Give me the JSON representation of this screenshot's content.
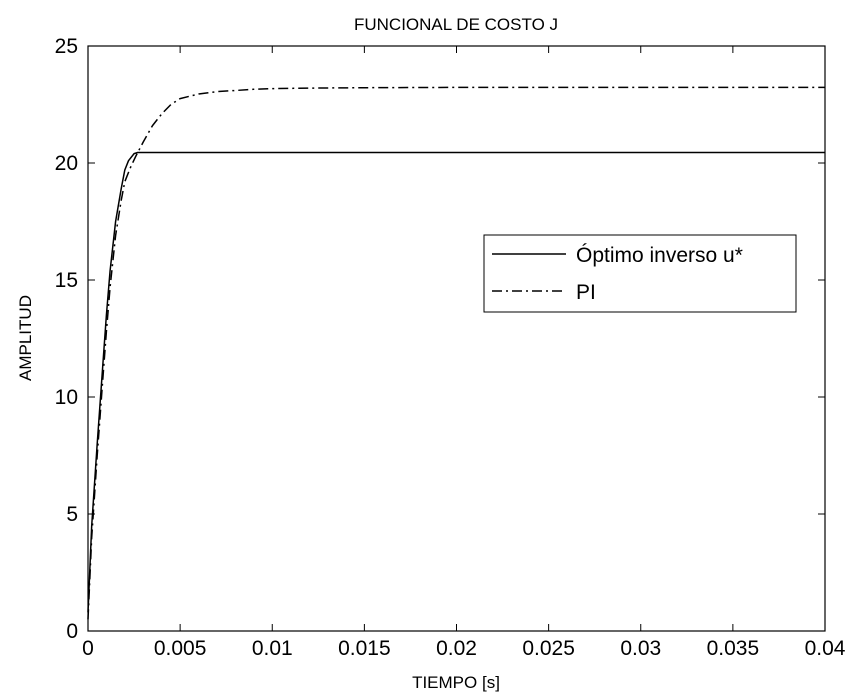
{
  "chart_data": {
    "type": "line",
    "title": "FUNCIONAL DE COSTO J",
    "xlabel": "TIEMPO [s]",
    "ylabel": "AMPLITUD",
    "xlim": [
      0,
      0.04
    ],
    "ylim": [
      0,
      25
    ],
    "xticks": [
      0,
      0.005,
      0.01,
      0.015,
      0.02,
      0.025,
      0.03,
      0.035,
      0.04
    ],
    "xtick_labels": [
      "0",
      "0.005",
      "0.01",
      "0.015",
      "0.02",
      "0.025",
      "0.03",
      "0.035",
      "0.04"
    ],
    "yticks": [
      0,
      5,
      10,
      15,
      20,
      25
    ],
    "ytick_labels": [
      "0",
      "5",
      "10",
      "15",
      "20",
      "25"
    ],
    "grid": false,
    "legend_position": "right",
    "series": [
      {
        "name": "Óptimo inverso u*",
        "style": "solid",
        "color": "#000000",
        "x": [
          0,
          0.0002,
          0.0005,
          0.0008,
          0.001,
          0.0012,
          0.0015,
          0.0018,
          0.002,
          0.0022,
          0.0025,
          0.0027,
          0.003,
          0.005,
          0.01,
          0.02,
          0.03,
          0.04
        ],
        "y": [
          0.8,
          4.5,
          8.0,
          11.3,
          13.5,
          15.4,
          17.5,
          18.9,
          19.7,
          20.1,
          20.4,
          20.45,
          20.45,
          20.45,
          20.45,
          20.45,
          20.45,
          20.45
        ]
      },
      {
        "name": "PI",
        "style": "dashdot",
        "color": "#000000",
        "x": [
          0,
          0.0002,
          0.0005,
          0.0008,
          0.001,
          0.0012,
          0.0015,
          0.0018,
          0.002,
          0.0023,
          0.0026,
          0.003,
          0.0035,
          0.004,
          0.0045,
          0.005,
          0.006,
          0.007,
          0.008,
          0.009,
          0.01,
          0.012,
          0.015,
          0.02,
          0.03,
          0.04
        ],
        "y": [
          0.5,
          4.0,
          7.5,
          10.7,
          12.8,
          14.7,
          16.9,
          18.4,
          19.2,
          19.8,
          20.3,
          20.9,
          21.6,
          22.1,
          22.5,
          22.75,
          22.95,
          23.05,
          23.1,
          23.15,
          23.18,
          23.2,
          23.22,
          23.23,
          23.23,
          23.23
        ]
      }
    ]
  }
}
